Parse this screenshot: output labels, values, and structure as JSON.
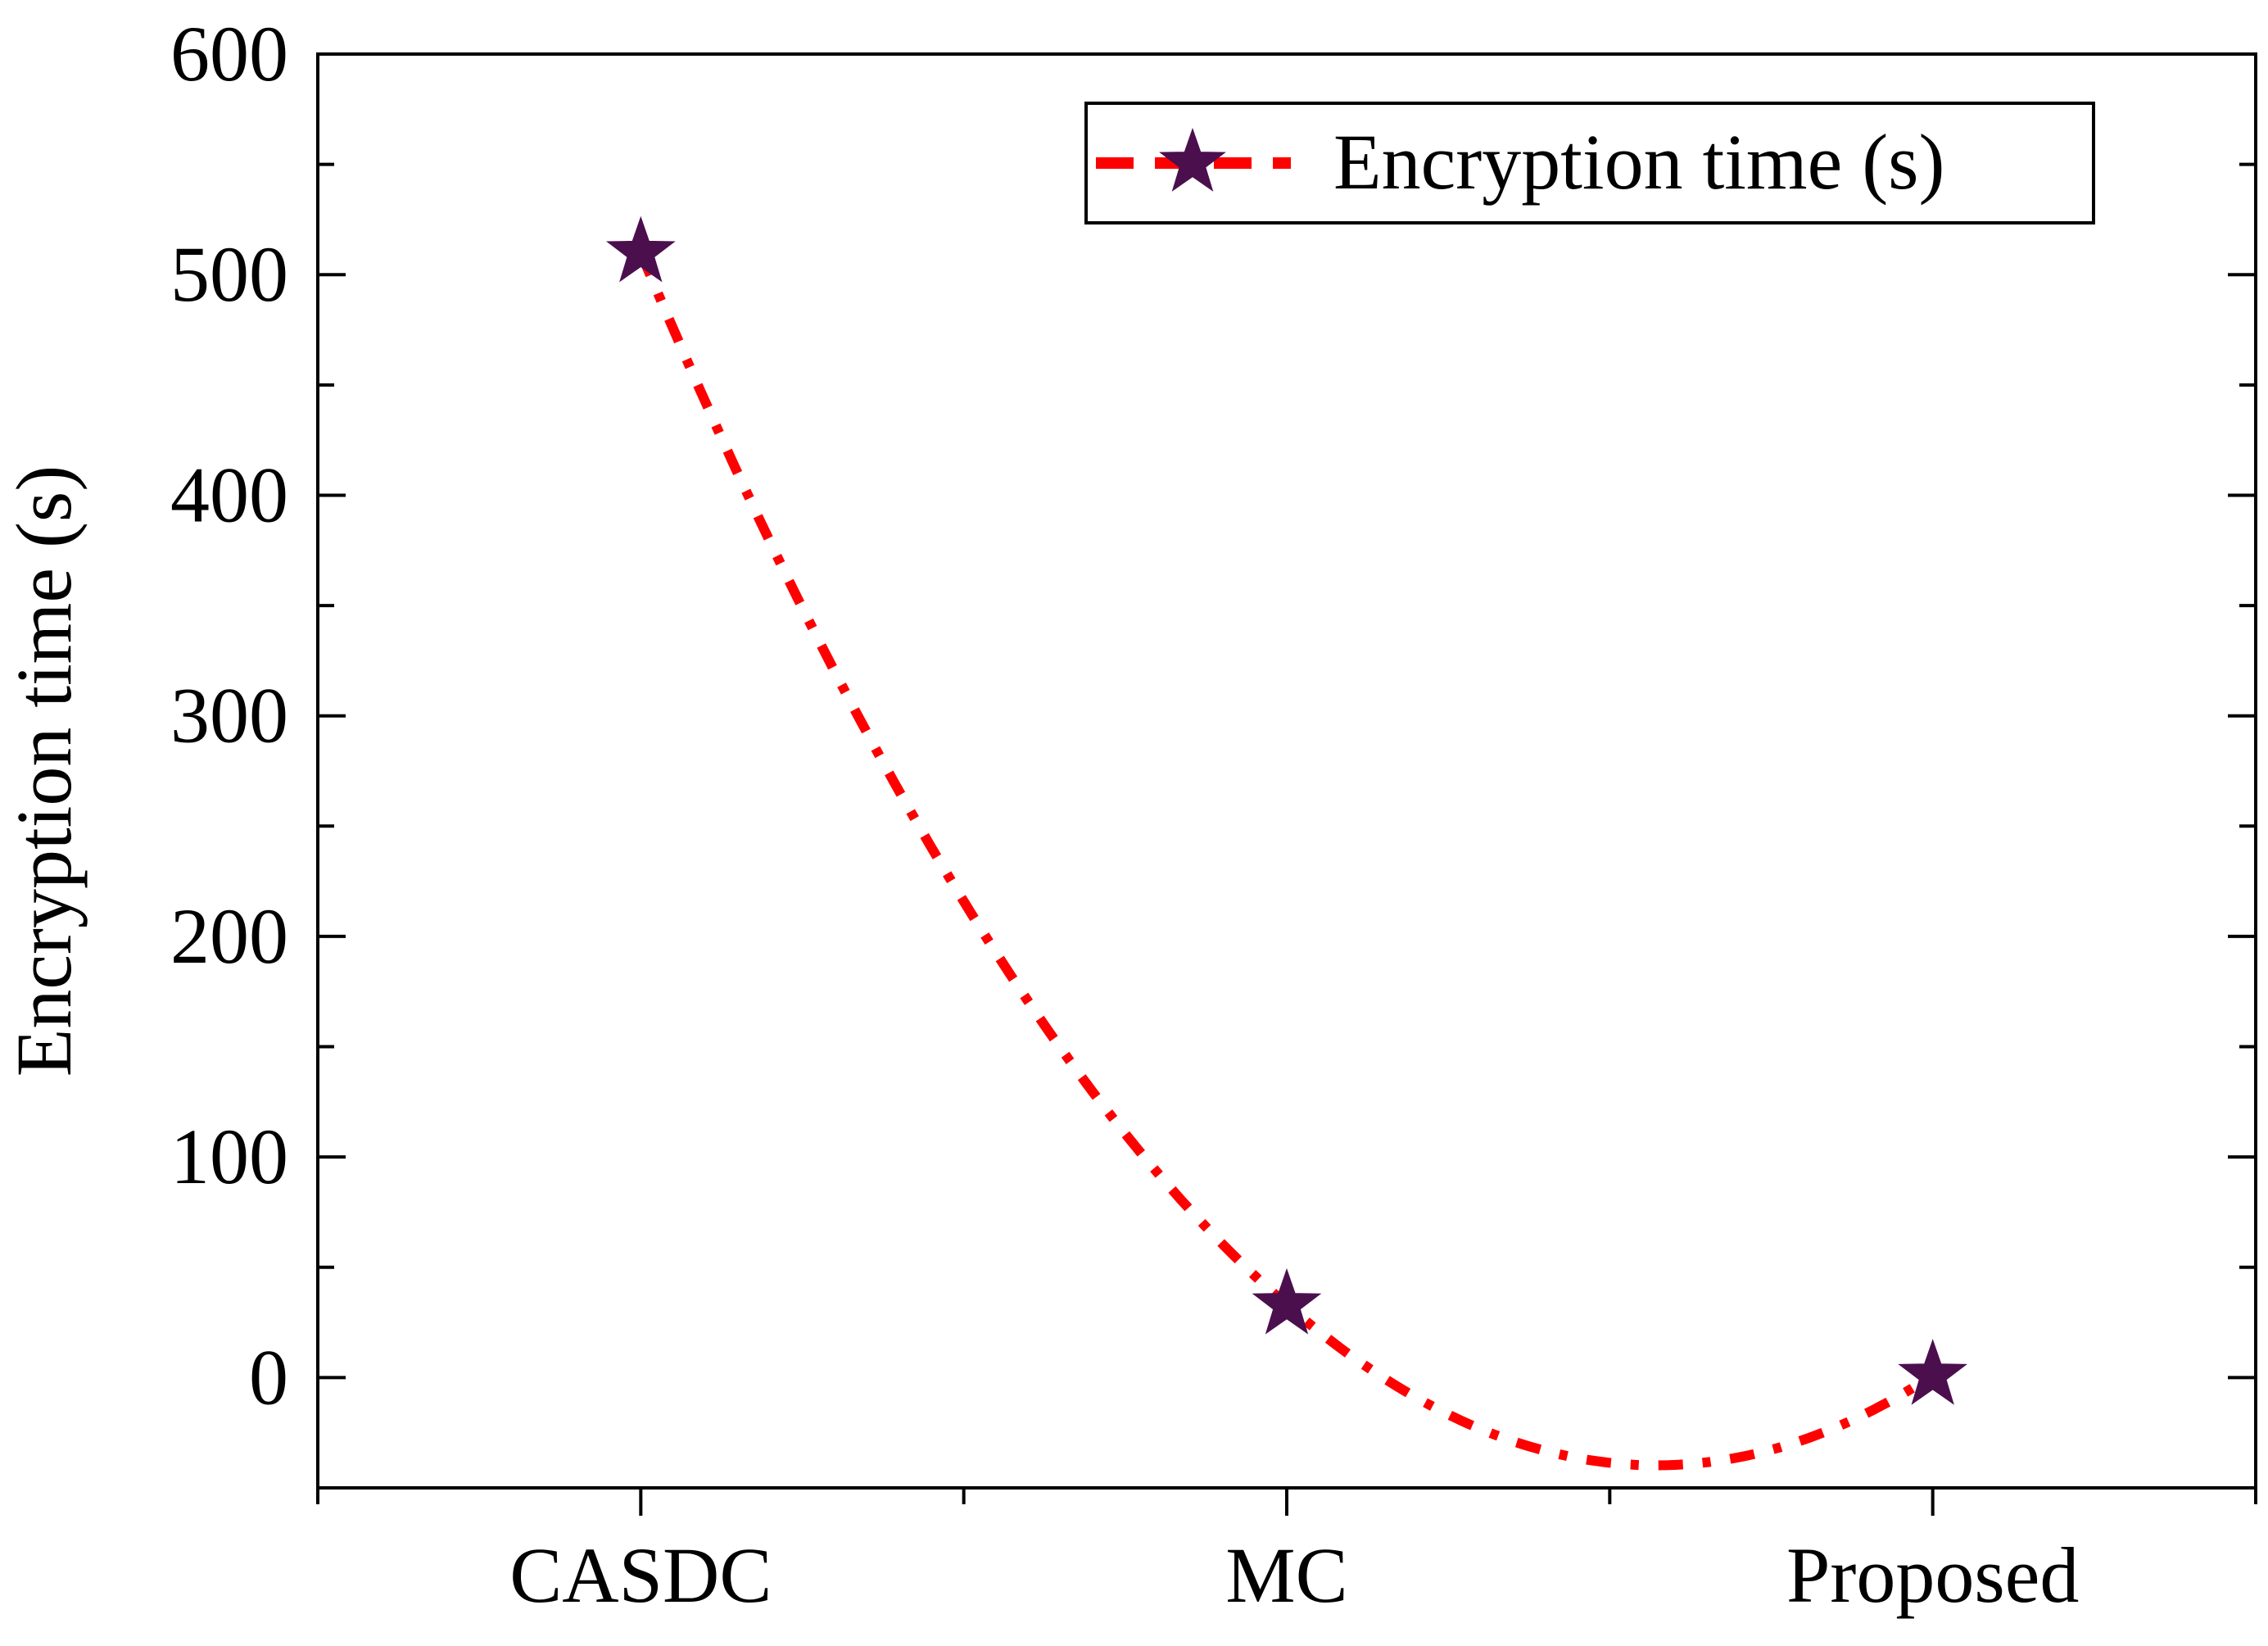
{
  "chart_data": {
    "type": "line",
    "title": "",
    "xlabel": "",
    "ylabel": "Encryption time (s)",
    "categories": [
      "CASDC",
      "MC",
      "Proposed"
    ],
    "series": [
      {
        "name": "Encryption time (s)",
        "values": [
          510,
          33,
          1
        ],
        "line_color": "#ff0000",
        "line_style": "dash-dot",
        "marker": "star",
        "marker_color": "#4b0f4e"
      }
    ],
    "ylim": [
      -50,
      600
    ],
    "yticks": [
      0,
      100,
      200,
      300,
      400,
      500,
      600
    ],
    "ytick_labels": [
      "0",
      "100",
      "200",
      "300",
      "400",
      "500",
      "600"
    ],
    "ytick_minor_step": 50,
    "grid": false,
    "legend": {
      "position": "top-right",
      "labels": [
        "Encryption time (s)"
      ]
    }
  }
}
